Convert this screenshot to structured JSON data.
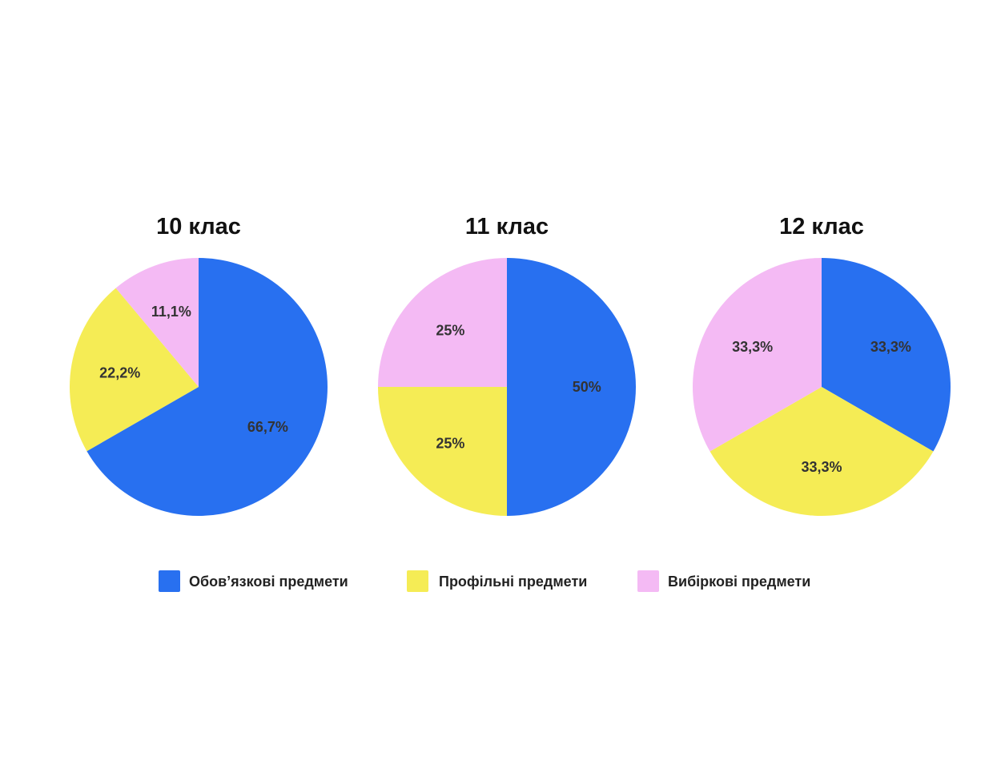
{
  "chart_data": [
    {
      "type": "pie",
      "title": "10 клас",
      "slices": [
        {
          "category": "Обов’язкові предмети",
          "value": 66.7,
          "label": "66,7%"
        },
        {
          "category": "Профільні предмети",
          "value": 22.2,
          "label": "22,2%"
        },
        {
          "category": "Вибіркові предмети",
          "value": 11.1,
          "label": "11,1%"
        }
      ]
    },
    {
      "type": "pie",
      "title": "11 клас",
      "slices": [
        {
          "category": "Обов’язкові предмети",
          "value": 50,
          "label": "50%"
        },
        {
          "category": "Профільні предмети",
          "value": 25,
          "label": "25%"
        },
        {
          "category": "Вибіркові предмети",
          "value": 25,
          "label": "25%"
        }
      ]
    },
    {
      "type": "pie",
      "title": "12 клас",
      "slices": [
        {
          "category": "Обов’язкові предмети",
          "value": 33.3,
          "label": "33,3%"
        },
        {
          "category": "Профільні предмети",
          "value": 33.3,
          "label": "33,3%"
        },
        {
          "category": "Вибіркові предмети",
          "value": 33.3,
          "label": "33,3%"
        }
      ]
    }
  ],
  "legend": {
    "placement": "bottom",
    "items": [
      {
        "label": "Обов’язкові предмети",
        "color": "#2870f0"
      },
      {
        "label": "Профільні предмети",
        "color": "#f5ec55"
      },
      {
        "label": "Вибіркові предмети",
        "color": "#f4baf4"
      }
    ]
  }
}
